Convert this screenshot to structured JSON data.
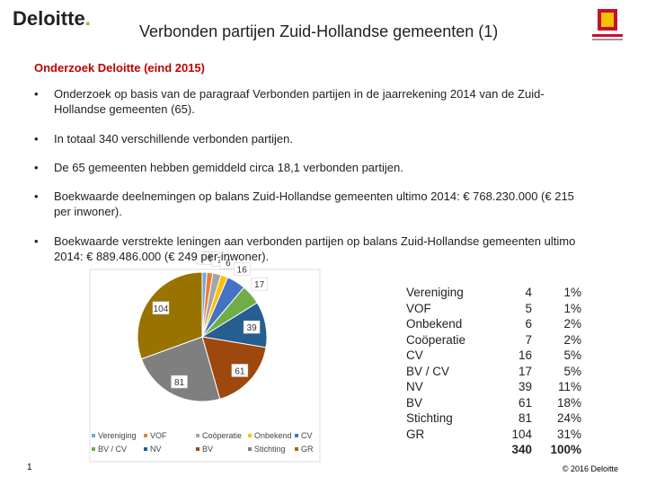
{
  "header": {
    "logo": "Deloitte",
    "title": "Verbonden partijen Zuid-Hollandse gemeenten (1)"
  },
  "subtitle": "Onderzoek Deloitte (eind 2015)",
  "bullets": [
    "Onderzoek op basis van de paragraaf Verbonden partijen in de jaarrekening 2014 van de Zuid-Hollandse gemeenten (65).",
    "In totaal 340 verschillende verbonden partijen.",
    "De 65 gemeenten hebben gemiddeld circa 18,1 verbonden partijen.",
    "Boekwaarde deelnemingen op balans Zuid-Hollandse gemeenten ultimo 2014: € 768.230.000 (€ 215 per inwoner).",
    "Boekwaarde verstrekte leningen aan verbonden partijen op balans Zuid-Hollandse gemeenten ultimo 2014: € 889.486.000 (€ 249 per inwoner)."
  ],
  "chart_data": {
    "type": "pie",
    "categories": [
      "Vereniging",
      "VOF",
      "Coöperatie",
      "Onbekend",
      "CV",
      "BV / CV",
      "NV",
      "BV",
      "Stichting",
      "GR"
    ],
    "values": [
      4,
      5,
      7,
      6,
      16,
      17,
      39,
      61,
      81,
      104
    ],
    "colors": [
      "#6fa8dc",
      "#ed7d31",
      "#a5a5a5",
      "#ffc000",
      "#4472c4",
      "#70ad47",
      "#255e91",
      "#9e480e",
      "#7f7f7f",
      "#997300"
    ]
  },
  "table": {
    "rows": [
      [
        "Vereniging",
        "4",
        "1%"
      ],
      [
        "VOF",
        "5",
        "1%"
      ],
      [
        "Onbekend",
        "6",
        "2%"
      ],
      [
        "Coöperatie",
        "7",
        "2%"
      ],
      [
        "CV",
        "16",
        "5%"
      ],
      [
        "BV / CV",
        "17",
        "5%"
      ],
      [
        "NV",
        "39",
        "11%"
      ],
      [
        "BV",
        "61",
        "18%"
      ],
      [
        "Stichting",
        "81",
        "24%"
      ],
      [
        "GR",
        "104",
        "31%"
      ]
    ],
    "total": [
      "340",
      "100%"
    ]
  },
  "footer": {
    "page": "1",
    "copyright": "© 2016 Deloitte"
  }
}
